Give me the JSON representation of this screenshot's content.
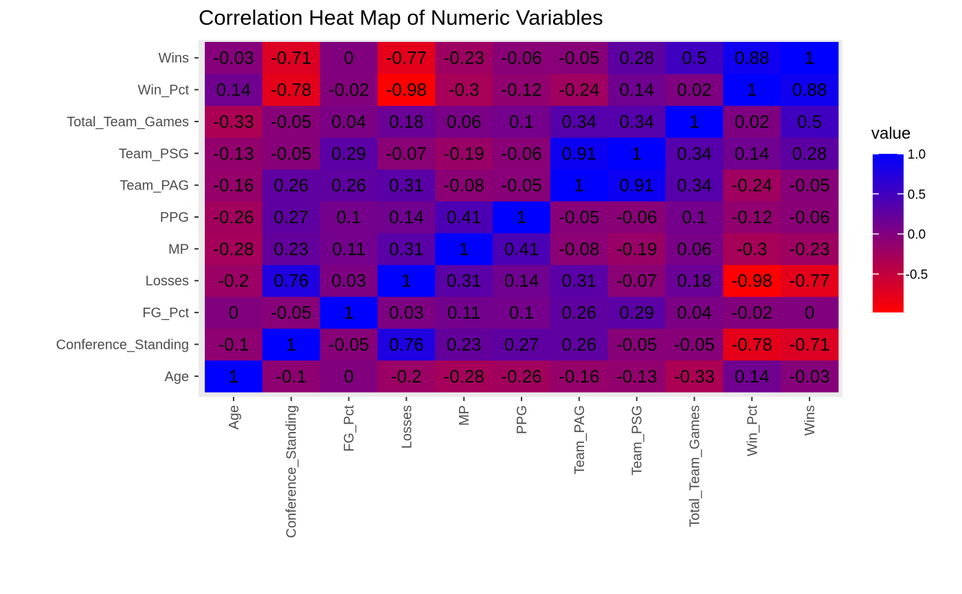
{
  "chart_data": {
    "type": "heatmap",
    "title": "Correlation Heat Map of Numeric Variables",
    "xlabel": "",
    "ylabel": "",
    "x_categories": [
      "Age",
      "Conference_Standing",
      "FG_Pct",
      "Losses",
      "MP",
      "PPG",
      "Team_PAG",
      "Team_PSG",
      "Total_Team_Games",
      "Win_Pct",
      "Wins"
    ],
    "y_categories": [
      "Age",
      "Conference_Standing",
      "FG_Pct",
      "Losses",
      "MP",
      "PPG",
      "Team_PAG",
      "Team_PSG",
      "Total_Team_Games",
      "Win_Pct",
      "Wins"
    ],
    "values": [
      [
        "1",
        "-0.1",
        "0",
        "-0.2",
        "-0.28",
        "-0.26",
        "-0.16",
        "-0.13",
        "-0.33",
        "0.14",
        "-0.03"
      ],
      [
        "-0.1",
        "1",
        "-0.05",
        "0.76",
        "0.23",
        "0.27",
        "0.26",
        "-0.05",
        "-0.05",
        "-0.78",
        "-0.71"
      ],
      [
        "0",
        "-0.05",
        "1",
        "0.03",
        "0.11",
        "0.1",
        "0.26",
        "0.29",
        "0.04",
        "-0.02",
        "0"
      ],
      [
        "-0.2",
        "0.76",
        "0.03",
        "1",
        "0.31",
        "0.14",
        "0.31",
        "-0.07",
        "0.18",
        "-0.98",
        "-0.77"
      ],
      [
        "-0.28",
        "0.23",
        "0.11",
        "0.31",
        "1",
        "0.41",
        "-0.08",
        "-0.19",
        "0.06",
        "-0.3",
        "-0.23"
      ],
      [
        "-0.26",
        "0.27",
        "0.1",
        "0.14",
        "0.41",
        "1",
        "-0.05",
        "-0.06",
        "0.1",
        "-0.12",
        "-0.06"
      ],
      [
        "-0.16",
        "0.26",
        "0.26",
        "0.31",
        "-0.08",
        "-0.05",
        "1",
        "0.91",
        "0.34",
        "-0.24",
        "-0.05"
      ],
      [
        "-0.13",
        "-0.05",
        "0.29",
        "-0.07",
        "-0.19",
        "-0.06",
        "0.91",
        "1",
        "0.34",
        "0.14",
        "0.28"
      ],
      [
        "-0.33",
        "-0.05",
        "0.04",
        "0.18",
        "0.06",
        "0.1",
        "0.34",
        "0.34",
        "1",
        "0.02",
        "0.5"
      ],
      [
        "0.14",
        "-0.78",
        "-0.02",
        "-0.98",
        "-0.3",
        "-0.12",
        "-0.24",
        "0.14",
        "0.02",
        "1",
        "0.88"
      ],
      [
        "-0.03",
        "-0.71",
        "0",
        "-0.77",
        "-0.23",
        "-0.06",
        "-0.05",
        "0.28",
        "0.5",
        "0.88",
        "1"
      ]
    ],
    "colorscale": {
      "low": "#ff0000",
      "high": "#0000ff",
      "min": -0.98,
      "max": 1.0
    },
    "legend": {
      "title": "value",
      "position": "right",
      "ticks": [
        "1.0",
        "0.5",
        "0.0",
        "-0.5"
      ]
    },
    "panel_background": "#ebebeb",
    "grid": true
  }
}
